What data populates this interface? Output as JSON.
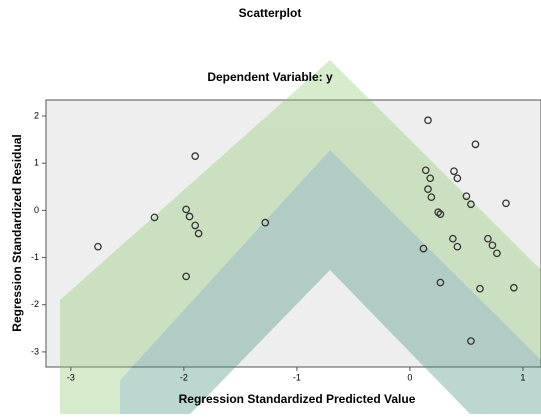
{
  "chart_data": {
    "type": "scatter",
    "title": "Scatterplot",
    "subtitle": "Dependent Variable: y",
    "x_label": "Regression Standardized Predicted Value",
    "y_label": "Regression Standardized Residual",
    "x": [
      -2.76,
      -2.26,
      -1.98,
      -1.95,
      -1.9,
      -1.87,
      -1.9,
      -1.98,
      -1.28,
      0.16,
      0.58,
      0.14,
      0.18,
      0.16,
      0.19,
      0.25,
      0.27,
      0.12,
      0.38,
      0.42,
      0.27,
      0.5,
      0.54,
      0.69,
      0.73,
      0.77,
      0.85,
      0.62,
      0.92,
      0.54,
      0.39,
      0.42
    ],
    "values": [
      -0.77,
      -0.15,
      0.02,
      -0.13,
      -0.32,
      -0.49,
      1.15,
      -1.4,
      -0.26,
      1.91,
      1.4,
      0.85,
      0.68,
      0.45,
      0.28,
      -0.04,
      -0.08,
      -0.81,
      -0.6,
      -0.77,
      -1.53,
      0.3,
      0.13,
      -0.6,
      -0.74,
      -0.91,
      0.15,
      -1.66,
      -1.64,
      -2.77,
      0.83,
      0.68
    ],
    "color": "#333333",
    "xlim": [
      -3.22,
      1.16
    ],
    "ylim": [
      -3.32,
      2.34
    ],
    "xticks": [
      -3,
      -2,
      -1,
      0,
      1
    ],
    "yticks": [
      -3,
      -2,
      -1,
      0,
      1,
      2
    ]
  }
}
